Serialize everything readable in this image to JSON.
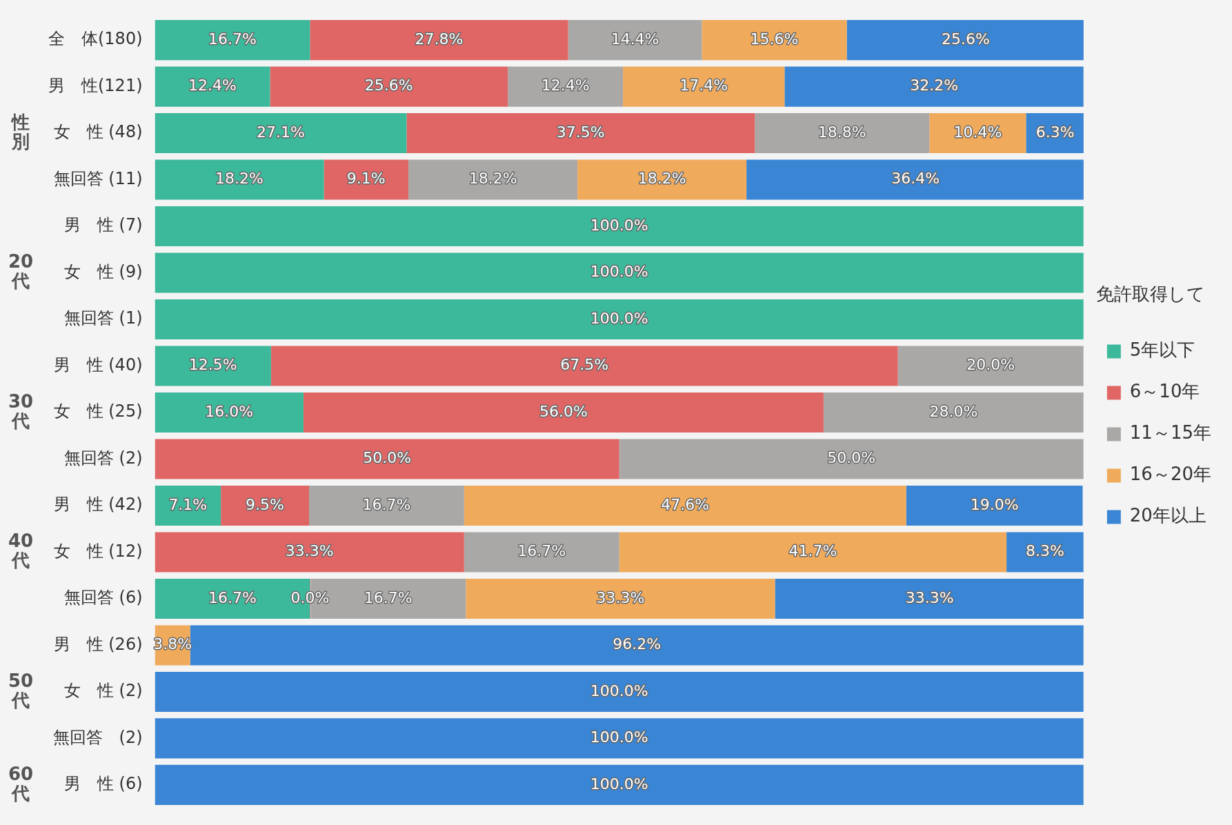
{
  "chart_data": {
    "type": "bar",
    "orientation": "horizontal",
    "stacked": true,
    "legend": "right",
    "legend_title": "免許取得して",
    "xlim": [
      0,
      100
    ],
    "tick_labels": "y",
    "categories": [
      "全　体(180)",
      "男　性(121)",
      "女　性 (48)",
      "無回答 (11)",
      "男　性 (7)",
      "女　性 (9)",
      "無回答 (1)",
      "男　性 (40)",
      "女　性 (25)",
      "無回答 (2)",
      "男　性 (42)",
      "女　性 (12)",
      "無回答 (6)",
      "男　性 (26)",
      "女　性 (2)",
      "無回答　(2)",
      "男　性 (6)"
    ],
    "series": [
      {
        "name": "5年以下",
        "color": "#3cb89a",
        "values": [
          16.7,
          12.4,
          27.1,
          18.2,
          100,
          100,
          100,
          12.5,
          16.0,
          null,
          7.1,
          null,
          16.7,
          null,
          null,
          null,
          null
        ],
        "value_labels": [
          "16.7%",
          "12.4%",
          "27.1%",
          "18.2%",
          "100.0%",
          "100.0%",
          "100.0%",
          "12.5%",
          "16.0%",
          null,
          "7.1%",
          null,
          "16.7%",
          null,
          null,
          null,
          null
        ]
      },
      {
        "name": "6～10年",
        "color": "#e06666",
        "values": [
          27.8,
          25.6,
          37.5,
          9.1,
          null,
          null,
          null,
          67.5,
          56.0,
          50.0,
          9.5,
          33.3,
          0.0,
          null,
          null,
          null,
          null
        ],
        "value_labels": [
          "27.8%",
          "25.6%",
          "37.5%",
          "9.1%",
          null,
          null,
          null,
          "67.5%",
          "56.0%",
          "50.0%",
          "9.5%",
          "33.3%",
          "0.0%",
          null,
          null,
          null,
          null
        ]
      },
      {
        "name": "11～15年",
        "color": "#aaa8a6",
        "values": [
          14.4,
          12.4,
          18.8,
          18.2,
          null,
          null,
          null,
          20.0,
          28.0,
          50.0,
          16.7,
          16.7,
          16.7,
          null,
          null,
          null,
          null
        ],
        "value_labels": [
          "14.4%",
          "12.4%",
          "18.8%",
          "18.2%",
          null,
          null,
          null,
          "20.0%",
          "28.0%",
          "50.0%",
          "16.7%",
          "16.7%",
          "16.7%",
          null,
          null,
          null,
          null
        ]
      },
      {
        "name": "16～20年",
        "color": "#f0aa5c",
        "values": [
          15.6,
          17.4,
          10.4,
          18.2,
          null,
          null,
          null,
          null,
          null,
          null,
          47.6,
          41.7,
          33.3,
          3.8,
          null,
          null,
          null
        ],
        "value_labels": [
          "15.6%",
          "17.4%",
          "10.4%",
          "18.2%",
          null,
          null,
          null,
          null,
          null,
          null,
          "47.6%",
          "41.7%",
          "33.3%",
          "3.8%",
          null,
          null,
          null
        ]
      },
      {
        "name": "20年以上",
        "color": "#3a85d4",
        "values": [
          25.6,
          32.2,
          6.3,
          36.4,
          null,
          null,
          null,
          null,
          null,
          null,
          19.0,
          8.3,
          33.3,
          96.2,
          100,
          100,
          100
        ],
        "value_labels": [
          "25.6%",
          "32.2%",
          "6.3%",
          "36.4%",
          null,
          null,
          null,
          null,
          null,
          null,
          "19.0%",
          "8.3%",
          "33.3%",
          "96.2%",
          "100.0%",
          "100.0%",
          "100.0%"
        ]
      }
    ],
    "annotations": [
      "性別",
      "20代",
      "30代",
      "40代",
      "50代",
      "60代"
    ]
  }
}
